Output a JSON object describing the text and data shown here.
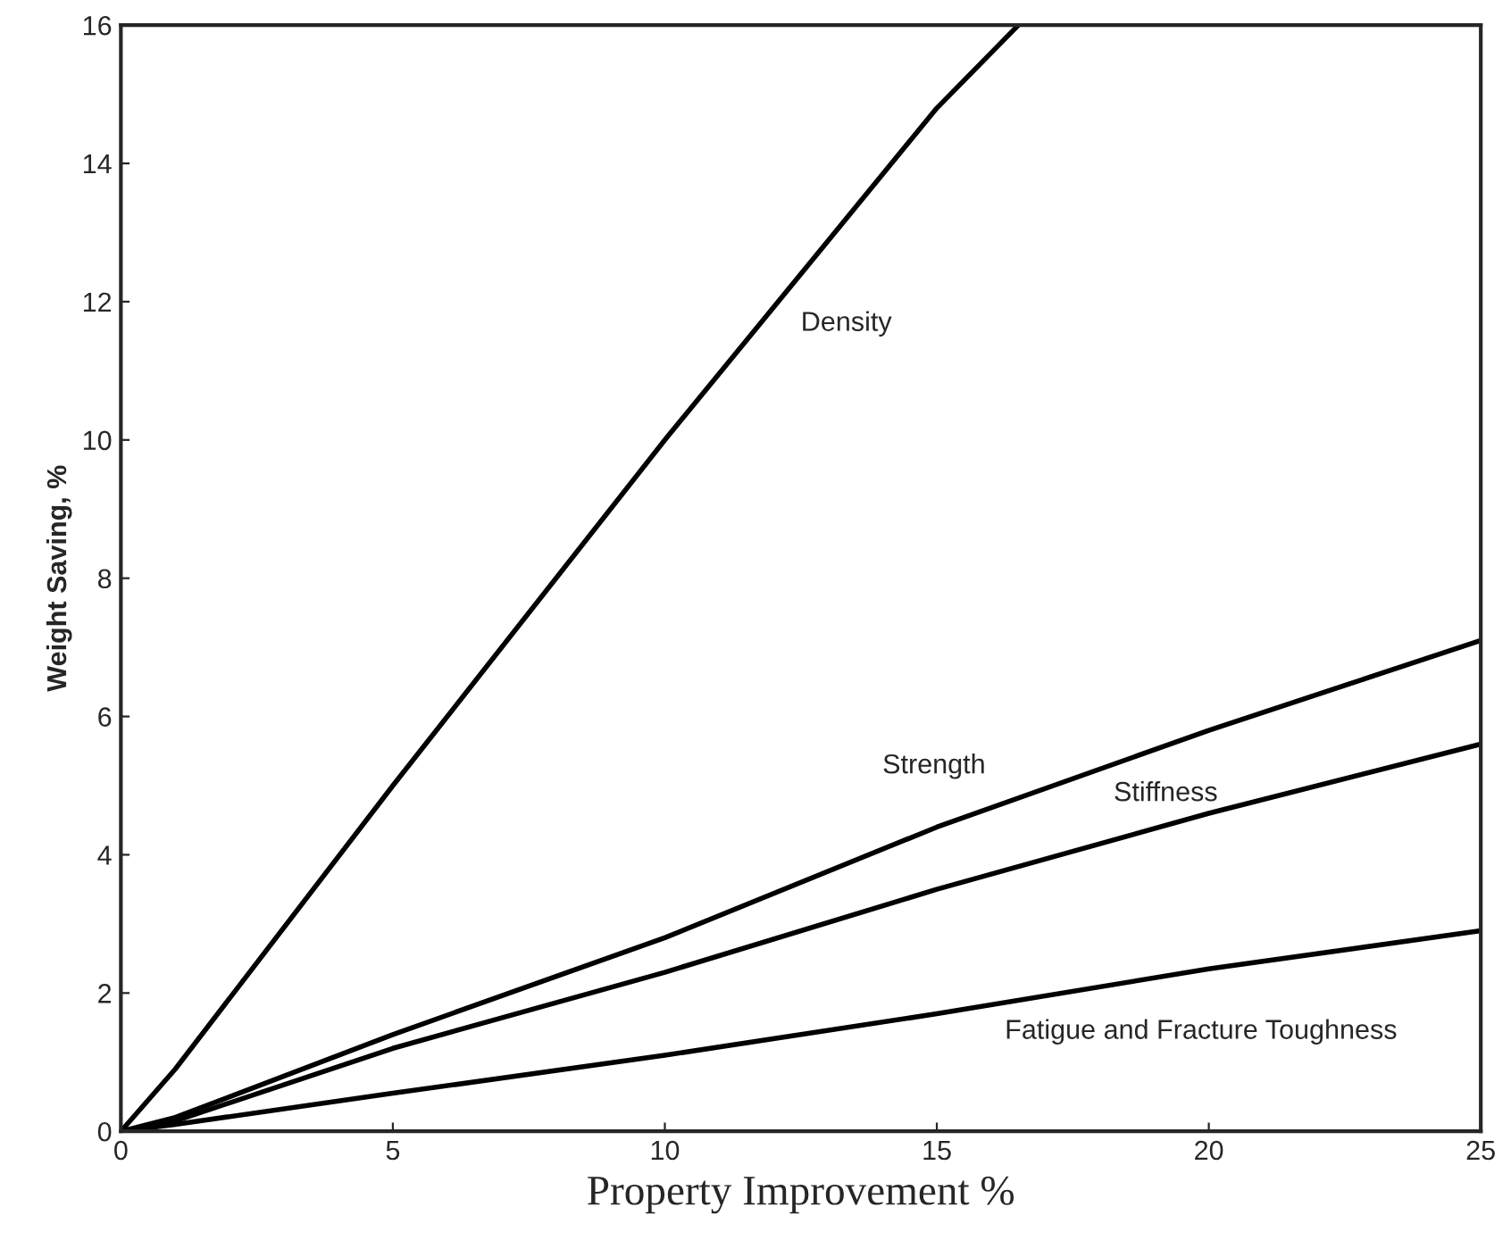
{
  "chart_data": {
    "type": "line",
    "xlabel": "Property Improvement %",
    "ylabel": "Weight Saving, %",
    "xlim": [
      0,
      25
    ],
    "ylim": [
      0,
      16
    ],
    "xticks": [
      0,
      5,
      10,
      15,
      20,
      25
    ],
    "yticks": [
      0,
      2,
      4,
      6,
      8,
      10,
      12,
      14,
      16
    ],
    "grid": false,
    "legend": false,
    "marker": "none",
    "line_style": "solid",
    "series": [
      {
        "name": "Density",
        "color": "#000000",
        "x": [
          0,
          1,
          5,
          10,
          15,
          16.5
        ],
        "values": [
          0,
          0.9,
          5,
          10,
          14.8,
          16
        ]
      },
      {
        "name": "Strength",
        "color": "#000000",
        "x": [
          0,
          1,
          5,
          10,
          15,
          20,
          25
        ],
        "values": [
          0,
          0.2,
          1.4,
          2.8,
          4.4,
          5.8,
          7.1
        ]
      },
      {
        "name": "Stiffness",
        "color": "#000000",
        "x": [
          0,
          1,
          5,
          10,
          15,
          20,
          25
        ],
        "values": [
          0,
          0.15,
          1.2,
          2.3,
          3.5,
          4.6,
          5.6
        ]
      },
      {
        "name": "Fatigue and Fracture Toughness",
        "color": "#000000",
        "x": [
          0,
          1,
          5,
          10,
          15,
          20,
          25
        ],
        "values": [
          0,
          0.1,
          0.55,
          1.1,
          1.7,
          2.35,
          2.9
        ]
      }
    ]
  }
}
